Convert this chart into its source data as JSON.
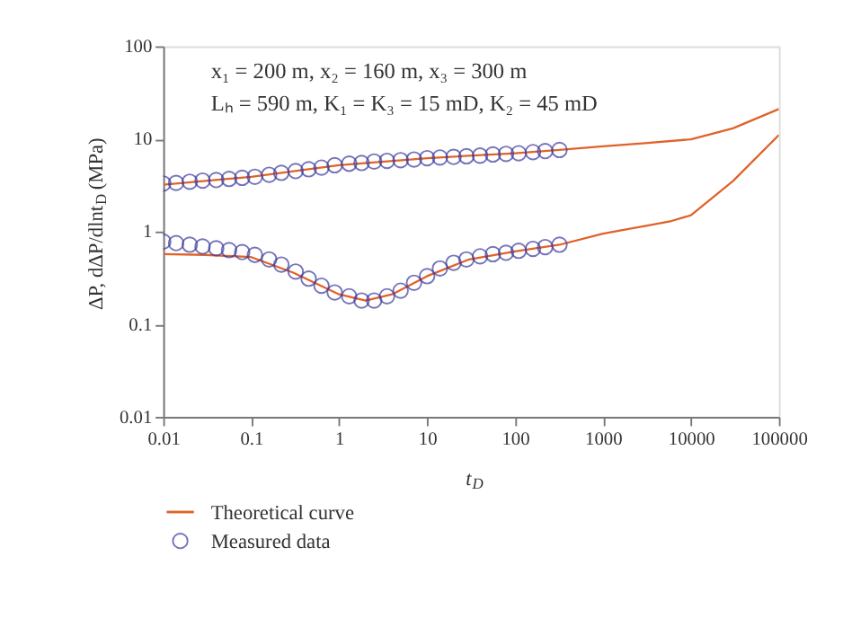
{
  "chart_data": {
    "type": "line",
    "xlabel": "t$_{D}$",
    "ylabel": "ΔP, dΔP/dlnt$_{D}$ (MPa)",
    "annotations": [
      "x₁ = 200 m, x₂ = 160 m, x₃ = 300 m",
      "Lₕ = 590 m, K₁ = K₃ = 15 mD, K₂ = 45 mD"
    ],
    "log": "xy",
    "grid": false,
    "legend": "bottom",
    "xlim": [
      0.01,
      100000
    ],
    "ylim": [
      0.01,
      100
    ],
    "xticks": [
      0.01,
      0.1,
      1,
      10,
      100,
      1000,
      10000,
      100000
    ],
    "yticks": [
      0.01,
      0.1,
      1,
      10,
      100
    ],
    "series": [
      {
        "name": "Theoretical curve",
        "color": "#e0622a",
        "x": [
          0.01,
          0.1,
          1,
          10,
          100,
          320,
          1000,
          3000,
          10000,
          30000,
          100000
        ],
        "values": [
          3.2,
          3.9,
          5.2,
          6.2,
          7.0,
          7.6,
          8.3,
          9.0,
          9.9,
          13,
          21
        ]
      },
      {
        "color": "#e0622a",
        "x": [
          0.01,
          0.03,
          0.1,
          0.3,
          1,
          2,
          4,
          10,
          30,
          100,
          320,
          1000,
          3000,
          6000,
          10000,
          30000,
          100000
        ],
        "values": [
          0.57,
          0.56,
          0.53,
          0.36,
          0.21,
          0.18,
          0.21,
          0.33,
          0.5,
          0.61,
          0.72,
          0.95,
          1.15,
          1.3,
          1.5,
          3.5,
          11
        ]
      },
      {
        "name": "Measured data",
        "type": "scatter",
        "marker": "circle",
        "color": "#3b3a9c",
        "x": [
          0.01,
          0.014,
          0.02,
          0.028,
          0.04,
          0.056,
          0.079,
          0.11,
          0.16,
          0.22,
          0.32,
          0.45,
          0.63,
          0.89,
          1.3,
          1.8,
          2.5,
          3.5,
          5,
          7.1,
          10,
          14,
          20,
          28,
          40,
          56,
          79,
          110,
          160,
          220,
          320
        ],
        "values": [
          3.3,
          3.35,
          3.45,
          3.55,
          3.6,
          3.7,
          3.8,
          3.9,
          4.1,
          4.3,
          4.5,
          4.7,
          4.9,
          5.2,
          5.4,
          5.5,
          5.7,
          5.8,
          5.9,
          6.0,
          6.2,
          6.3,
          6.4,
          6.5,
          6.6,
          6.8,
          6.9,
          7.0,
          7.2,
          7.4,
          7.6
        ]
      },
      {
        "type": "scatter",
        "marker": "circle",
        "color": "#3b3a9c",
        "x": [
          0.01,
          0.014,
          0.02,
          0.028,
          0.04,
          0.056,
          0.079,
          0.11,
          0.16,
          0.22,
          0.32,
          0.45,
          0.63,
          0.89,
          1.3,
          1.8,
          2.5,
          3.5,
          5,
          7.1,
          10,
          14,
          20,
          28,
          40,
          56,
          79,
          110,
          160,
          220,
          320
        ],
        "values": [
          0.78,
          0.75,
          0.72,
          0.69,
          0.66,
          0.63,
          0.6,
          0.56,
          0.5,
          0.44,
          0.37,
          0.31,
          0.26,
          0.22,
          0.2,
          0.18,
          0.18,
          0.2,
          0.23,
          0.28,
          0.33,
          0.4,
          0.46,
          0.5,
          0.54,
          0.57,
          0.59,
          0.62,
          0.65,
          0.68,
          0.72
        ]
      }
    ]
  }
}
